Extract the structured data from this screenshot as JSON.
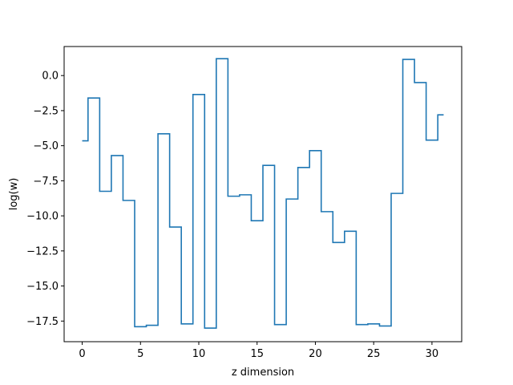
{
  "chart_data": {
    "type": "line",
    "drawstyle": "steps-mid",
    "title": "",
    "xlabel": "z dimension",
    "ylabel": "log(w)",
    "xlim": [
      -1.55,
      32.55
    ],
    "ylim": [
      -18.97,
      2.07
    ],
    "grid": false,
    "color": "#1f77b4",
    "x": [
      0,
      1,
      2,
      3,
      4,
      5,
      6,
      7,
      8,
      9,
      10,
      11,
      12,
      13,
      14,
      15,
      16,
      17,
      18,
      19,
      20,
      21,
      22,
      23,
      24,
      25,
      26,
      27,
      28,
      29,
      30,
      31
    ],
    "values": [
      -4.65,
      -1.6,
      -8.25,
      -5.7,
      -8.9,
      -17.9,
      -17.8,
      -4.15,
      -10.8,
      -17.7,
      -1.35,
      -18.0,
      1.2,
      -8.6,
      -8.5,
      -10.35,
      -6.4,
      -17.75,
      -8.8,
      -6.55,
      -5.35,
      -9.7,
      -11.9,
      -11.1,
      -17.75,
      -17.7,
      -17.85,
      -8.4,
      1.15,
      -0.5,
      -4.6,
      -2.8
    ],
    "xticks": [
      0,
      5,
      10,
      15,
      20,
      25,
      30
    ],
    "xtick_labels": [
      "0",
      "5",
      "10",
      "15",
      "20",
      "25",
      "30"
    ],
    "yticks": [
      0.0,
      -2.5,
      -5.0,
      -7.5,
      -10.0,
      -12.5,
      -15.0,
      -17.5
    ],
    "ytick_labels": [
      "0.0",
      "−2.5",
      "−5.0",
      "−7.5",
      "−10.0",
      "−12.5",
      "−15.0",
      "−17.5"
    ]
  }
}
